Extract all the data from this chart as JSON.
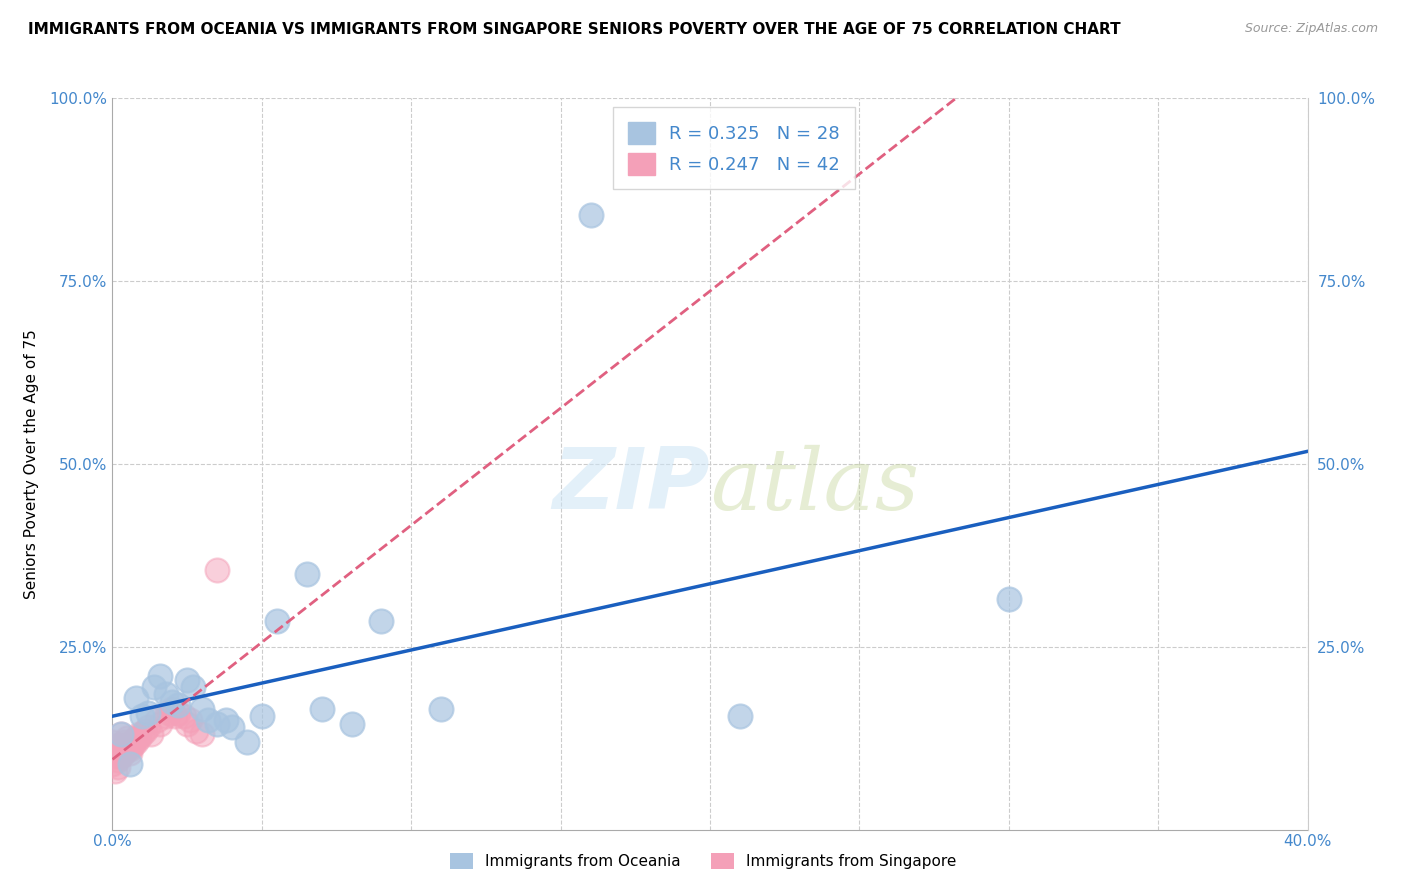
{
  "title": "IMMIGRANTS FROM OCEANIA VS IMMIGRANTS FROM SINGAPORE SENIORS POVERTY OVER THE AGE OF 75 CORRELATION CHART",
  "source": "Source: ZipAtlas.com",
  "ylabel": "Seniors Poverty Over the Age of 75",
  "xlim": [
    0.0,
    0.4
  ],
  "ylim": [
    0.0,
    1.0
  ],
  "R_oceania": 0.325,
  "N_oceania": 28,
  "R_singapore": 0.247,
  "N_singapore": 42,
  "oceania_color": "#a8c4e0",
  "singapore_color": "#f4a0b8",
  "oceania_line_color": "#1a5fbf",
  "singapore_line_color": "#e06080",
  "oceania_x": [
    0.003,
    0.006,
    0.008,
    0.01,
    0.012,
    0.014,
    0.016,
    0.018,
    0.02,
    0.022,
    0.025,
    0.027,
    0.03,
    0.032,
    0.035,
    0.038,
    0.04,
    0.045,
    0.05,
    0.055,
    0.065,
    0.07,
    0.08,
    0.09,
    0.11,
    0.16,
    0.21,
    0.3
  ],
  "oceania_y": [
    0.13,
    0.09,
    0.18,
    0.155,
    0.16,
    0.195,
    0.21,
    0.185,
    0.175,
    0.17,
    0.205,
    0.195,
    0.165,
    0.15,
    0.145,
    0.15,
    0.14,
    0.12,
    0.155,
    0.285,
    0.35,
    0.165,
    0.145,
    0.285,
    0.165,
    0.84,
    0.155,
    0.315
  ],
  "singapore_x": [
    0.0,
    0.0,
    0.001,
    0.001,
    0.001,
    0.002,
    0.002,
    0.002,
    0.003,
    0.003,
    0.003,
    0.004,
    0.004,
    0.004,
    0.005,
    0.005,
    0.005,
    0.006,
    0.006,
    0.007,
    0.007,
    0.008,
    0.008,
    0.009,
    0.009,
    0.01,
    0.011,
    0.012,
    0.013,
    0.015,
    0.016,
    0.018,
    0.019,
    0.02,
    0.021,
    0.022,
    0.024,
    0.025,
    0.026,
    0.028,
    0.03,
    0.035
  ],
  "singapore_y": [
    0.09,
    0.12,
    0.08,
    0.1,
    0.11,
    0.085,
    0.095,
    0.115,
    0.1,
    0.11,
    0.13,
    0.115,
    0.12,
    0.105,
    0.125,
    0.115,
    0.11,
    0.11,
    0.105,
    0.115,
    0.12,
    0.12,
    0.125,
    0.125,
    0.13,
    0.13,
    0.135,
    0.14,
    0.13,
    0.15,
    0.145,
    0.155,
    0.16,
    0.165,
    0.155,
    0.16,
    0.155,
    0.145,
    0.15,
    0.135,
    0.13,
    0.355
  ]
}
